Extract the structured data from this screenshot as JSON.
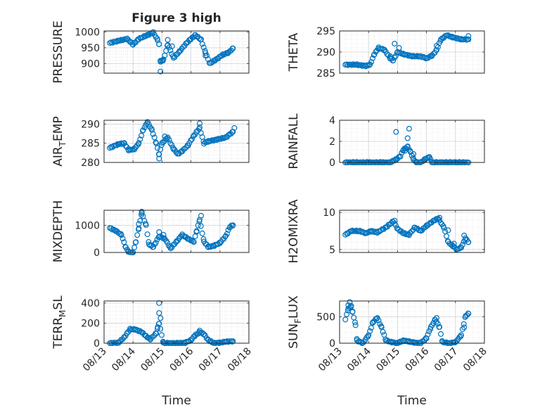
{
  "figure_title": "Figure 3 high",
  "marker_color": "#0072BD",
  "chart_data": [
    {
      "type": "scatter",
      "ylabel": "PRESSURE",
      "ylim": [
        870,
        1003
      ],
      "yticks": [
        900,
        950,
        1000
      ],
      "xlim": [
        13,
        18
      ],
      "xticks": [
        13,
        14,
        15,
        16,
        17,
        18
      ],
      "xtick_labels": [],
      "xlabel": "",
      "grid": true,
      "anchors": [
        [
          13.2,
          965
        ],
        [
          13.5,
          972
        ],
        [
          13.8,
          978
        ],
        [
          14.0,
          960
        ],
        [
          14.2,
          978
        ],
        [
          14.5,
          990
        ],
        [
          14.7,
          998
        ],
        [
          14.85,
          975
        ],
        [
          14.9,
          960
        ],
        [
          14.95,
          905
        ],
        [
          15.05,
          912
        ],
        [
          15.2,
          960
        ],
        [
          15.4,
          918
        ],
        [
          15.6,
          938
        ],
        [
          15.85,
          965
        ],
        [
          16.0,
          978
        ],
        [
          16.15,
          990
        ],
        [
          16.35,
          975
        ],
        [
          16.5,
          935
        ],
        [
          16.65,
          900
        ],
        [
          16.85,
          912
        ],
        [
          17.1,
          928
        ],
        [
          17.3,
          935
        ],
        [
          17.45,
          948
        ]
      ],
      "extra_points": [
        [
          14.95,
          875
        ],
        [
          15.0,
          910
        ],
        [
          15.2,
          975
        ],
        [
          15.35,
          955
        ],
        [
          16.5,
          925
        ]
      ]
    },
    {
      "type": "scatter",
      "ylabel": "THETA",
      "ylim": [
        285,
        295
      ],
      "yticks": [
        285,
        290,
        295
      ],
      "xlim": [
        13,
        18
      ],
      "xticks": [
        13,
        14,
        15,
        16,
        17,
        18
      ],
      "xtick_labels": [],
      "xlabel": "",
      "grid": true,
      "anchors": [
        [
          13.2,
          287
        ],
        [
          13.6,
          287
        ],
        [
          13.9,
          286.7
        ],
        [
          14.05,
          287
        ],
        [
          14.2,
          289.5
        ],
        [
          14.35,
          291
        ],
        [
          14.55,
          290.5
        ],
        [
          14.75,
          288.5
        ],
        [
          14.85,
          288
        ],
        [
          15.0,
          290
        ],
        [
          15.2,
          289.5
        ],
        [
          15.5,
          289
        ],
        [
          15.8,
          289
        ],
        [
          16.0,
          288.5
        ],
        [
          16.2,
          289.2
        ],
        [
          16.35,
          290.5
        ],
        [
          16.5,
          293
        ],
        [
          16.7,
          294
        ],
        [
          16.9,
          293.5
        ],
        [
          17.2,
          293
        ],
        [
          17.45,
          293
        ]
      ],
      "extra_points": [
        [
          14.9,
          292
        ],
        [
          15.05,
          291
        ],
        [
          14.75,
          289
        ],
        [
          16.35,
          291.5
        ],
        [
          17.45,
          293.8
        ]
      ]
    },
    {
      "type": "scatter",
      "ylabel": "AIR_TEMP",
      "ylabel_parts": [
        "AIR",
        "T",
        "EMP"
      ],
      "ylim": [
        280,
        291
      ],
      "yticks": [
        280,
        285,
        290
      ],
      "xlim": [
        13,
        18
      ],
      "xticks": [
        13,
        14,
        15,
        16,
        17,
        18
      ],
      "xtick_labels": [],
      "xlabel": "",
      "grid": true,
      "anchors": [
        [
          13.2,
          283.8
        ],
        [
          13.5,
          284.8
        ],
        [
          13.7,
          285
        ],
        [
          13.85,
          283.2
        ],
        [
          14.05,
          283.5
        ],
        [
          14.2,
          285
        ],
        [
          14.35,
          288.5
        ],
        [
          14.5,
          290.5
        ],
        [
          14.65,
          288.5
        ],
        [
          14.8,
          285
        ],
        [
          14.9,
          282
        ],
        [
          15.0,
          285
        ],
        [
          15.2,
          286.5
        ],
        [
          15.4,
          283.5
        ],
        [
          15.55,
          282.2
        ],
        [
          15.7,
          283
        ],
        [
          15.9,
          284.5
        ],
        [
          16.1,
          287
        ],
        [
          16.3,
          289
        ],
        [
          16.45,
          285
        ],
        [
          16.6,
          285.5
        ],
        [
          16.9,
          286
        ],
        [
          17.2,
          286.5
        ],
        [
          17.45,
          288
        ]
      ],
      "extra_points": [
        [
          14.9,
          281
        ],
        [
          16.3,
          290.2
        ],
        [
          17.5,
          289
        ],
        [
          15.1,
          286.8
        ]
      ]
    },
    {
      "type": "scatter",
      "ylabel": "RAINFALL",
      "ylim": [
        0,
        4
      ],
      "yticks": [
        0,
        2,
        4
      ],
      "xlim": [
        13,
        18
      ],
      "xticks": [
        13,
        14,
        15,
        16,
        17,
        18
      ],
      "xtick_labels": [],
      "xlabel": "",
      "grid": true,
      "anchors": [
        [
          13.2,
          0
        ],
        [
          13.5,
          0
        ],
        [
          14.0,
          0
        ],
        [
          14.5,
          0
        ],
        [
          14.75,
          0
        ],
        [
          14.95,
          0.3
        ],
        [
          15.1,
          0.6
        ],
        [
          15.2,
          1.2
        ],
        [
          15.35,
          1.5
        ],
        [
          15.45,
          1.0
        ],
        [
          15.55,
          0.3
        ],
        [
          15.65,
          0
        ],
        [
          15.8,
          0
        ],
        [
          15.95,
          0.3
        ],
        [
          16.1,
          0.5
        ],
        [
          16.2,
          0
        ],
        [
          16.5,
          0
        ],
        [
          17.0,
          0
        ],
        [
          17.45,
          0
        ]
      ],
      "extra_points": [
        [
          14.95,
          2.9
        ],
        [
          15.35,
          2.3
        ],
        [
          15.4,
          3.2
        ],
        [
          15.25,
          1.1
        ],
        [
          15.55,
          0.8
        ]
      ]
    },
    {
      "type": "scatter",
      "ylabel": "MIXDEPTH",
      "ylim": [
        0,
        1550
      ],
      "yticks": [
        0,
        1000
      ],
      "xlim": [
        13,
        18
      ],
      "xticks": [
        13,
        14,
        15,
        16,
        17,
        18
      ],
      "xtick_labels": [],
      "xlabel": "",
      "grid": true,
      "anchors": [
        [
          13.2,
          900
        ],
        [
          13.4,
          800
        ],
        [
          13.6,
          650
        ],
        [
          13.75,
          180
        ],
        [
          13.85,
          20
        ],
        [
          14.0,
          0
        ],
        [
          14.1,
          400
        ],
        [
          14.2,
          900
        ],
        [
          14.3,
          1450
        ],
        [
          14.45,
          1000
        ],
        [
          14.55,
          300
        ],
        [
          14.7,
          200
        ],
        [
          14.9,
          600
        ],
        [
          15.1,
          500
        ],
        [
          15.3,
          150
        ],
        [
          15.5,
          400
        ],
        [
          15.7,
          650
        ],
        [
          15.9,
          500
        ],
        [
          16.1,
          400
        ],
        [
          16.2,
          800
        ],
        [
          16.3,
          1200
        ],
        [
          16.45,
          400
        ],
        [
          16.6,
          200
        ],
        [
          16.8,
          250
        ],
        [
          17.0,
          350
        ],
        [
          17.2,
          600
        ],
        [
          17.35,
          950
        ],
        [
          17.45,
          1000
        ]
      ],
      "extra_points": [
        [
          14.2,
          1050
        ],
        [
          14.3,
          1500
        ],
        [
          16.35,
          1350
        ],
        [
          14.9,
          750
        ],
        [
          15.05,
          650
        ]
      ]
    },
    {
      "type": "scatter",
      "ylabel": "H2OMIXRA",
      "ylim": [
        4.6,
        10.3
      ],
      "yticks": [
        5,
        10
      ],
      "xlim": [
        13,
        18
      ],
      "xticks": [
        13,
        14,
        15,
        16,
        17,
        18
      ],
      "xtick_labels": [],
      "xlabel": "",
      "grid": true,
      "anchors": [
        [
          13.2,
          7.0
        ],
        [
          13.4,
          7.5
        ],
        [
          13.7,
          7.5
        ],
        [
          13.9,
          7.2
        ],
        [
          14.1,
          7.5
        ],
        [
          14.3,
          7.3
        ],
        [
          14.6,
          8.0
        ],
        [
          14.85,
          8.8
        ],
        [
          15.0,
          7.8
        ],
        [
          15.2,
          7.2
        ],
        [
          15.4,
          7.0
        ],
        [
          15.6,
          8.0
        ],
        [
          15.8,
          7.5
        ],
        [
          16.0,
          8.2
        ],
        [
          16.25,
          8.9
        ],
        [
          16.4,
          9.2
        ],
        [
          16.6,
          8.0
        ],
        [
          16.75,
          6.0
        ],
        [
          16.9,
          5.5
        ],
        [
          17.05,
          5.0
        ],
        [
          17.2,
          5.3
        ],
        [
          17.35,
          6.5
        ],
        [
          17.45,
          6.0
        ]
      ],
      "extra_points": [
        [
          14.9,
          8.9
        ],
        [
          16.45,
          9.3
        ],
        [
          16.95,
          5.8
        ],
        [
          17.3,
          6.9
        ],
        [
          16.75,
          7.6
        ]
      ]
    },
    {
      "type": "scatter",
      "ylabel": "TERR_MSL",
      "ylabel_parts": [
        "TERR",
        "M",
        "SL"
      ],
      "ylim": [
        0,
        420
      ],
      "yticks": [
        0,
        200,
        400
      ],
      "xlim": [
        13,
        18
      ],
      "xticks": [
        13,
        14,
        15,
        16,
        17,
        18
      ],
      "xtick_labels": [
        "08/13",
        "08/14",
        "08/15",
        "08/16",
        "08/17",
        "08/18"
      ],
      "xlabel": "Time",
      "grid": true,
      "anchors": [
        [
          13.2,
          0
        ],
        [
          13.5,
          5
        ],
        [
          13.7,
          60
        ],
        [
          13.9,
          140
        ],
        [
          14.1,
          135
        ],
        [
          14.3,
          110
        ],
        [
          14.45,
          70
        ],
        [
          14.6,
          40
        ],
        [
          14.8,
          100
        ],
        [
          14.9,
          200
        ],
        [
          15.05,
          0
        ],
        [
          15.3,
          0
        ],
        [
          15.6,
          0
        ],
        [
          15.8,
          5
        ],
        [
          16.0,
          30
        ],
        [
          16.15,
          80
        ],
        [
          16.3,
          110
        ],
        [
          16.45,
          90
        ],
        [
          16.6,
          30
        ],
        [
          16.8,
          0
        ],
        [
          17.0,
          5
        ],
        [
          17.2,
          15
        ],
        [
          17.45,
          20
        ]
      ],
      "extra_points": [
        [
          14.9,
          300
        ],
        [
          14.9,
          400
        ],
        [
          14.95,
          250
        ],
        [
          14.85,
          160
        ],
        [
          16.3,
          125
        ]
      ]
    },
    {
      "type": "scatter",
      "ylabel": "SUN_FLUX",
      "ylabel_parts": [
        "SUN",
        "F",
        "LUX"
      ],
      "ylim": [
        0,
        800
      ],
      "yticks": [
        0,
        500
      ],
      "xlim": [
        13,
        18
      ],
      "xticks": [
        13,
        14,
        15,
        16,
        17,
        18
      ],
      "xtick_labels": [
        "08/13",
        "08/14",
        "08/15",
        "08/16",
        "08/17",
        "08/18"
      ],
      "xlabel": "Time",
      "grid": true,
      "anchors": [
        [
          13.2,
          450
        ],
        [
          13.3,
          650
        ],
        [
          13.4,
          700
        ],
        [
          13.55,
          350
        ],
        [
          13.6,
          50
        ],
        [
          13.8,
          0
        ],
        [
          14.0,
          150
        ],
        [
          14.15,
          400
        ],
        [
          14.3,
          480
        ],
        [
          14.45,
          300
        ],
        [
          14.6,
          50
        ],
        [
          14.8,
          20
        ],
        [
          15.0,
          0
        ],
        [
          15.2,
          50
        ],
        [
          15.4,
          30
        ],
        [
          15.6,
          10
        ],
        [
          15.8,
          0
        ],
        [
          16.0,
          100
        ],
        [
          16.15,
          300
        ],
        [
          16.3,
          450
        ],
        [
          16.45,
          300
        ],
        [
          16.55,
          20
        ],
        [
          16.8,
          0
        ],
        [
          17.0,
          20
        ],
        [
          17.2,
          150
        ],
        [
          17.35,
          520
        ],
        [
          17.45,
          560
        ]
      ],
      "extra_points": [
        [
          13.35,
          780
        ],
        [
          13.3,
          720
        ],
        [
          13.45,
          600
        ],
        [
          16.35,
          480
        ],
        [
          17.3,
          300
        ]
      ]
    }
  ]
}
